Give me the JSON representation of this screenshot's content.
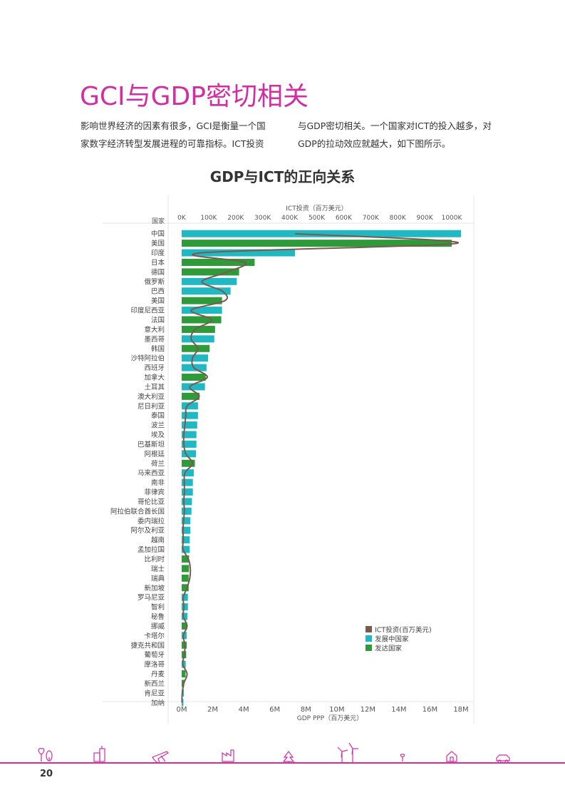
{
  "page": {
    "title": "GCI与GDP密切相关",
    "intro_left": [
      "影响世界经济的因素有很多，GCI是衡量一个国",
      "家数字经济转型发展进程的可靠指标。ICT投资"
    ],
    "intro_right": [
      "与GDP密切相关。一个国家对ICT的投入越多，对",
      "GDP的拉动效应就越大，如下图所示。"
    ],
    "page_number": "20"
  },
  "colors": {
    "accent": "#d12ea4",
    "developing": "#1fb8c3",
    "developed": "#2e9a3a",
    "ict_line": "#7b5a4e"
  },
  "footer_icons": [
    "plant-icon",
    "buildings-icon",
    "airplane-icon",
    "factory-icon",
    "tree-icon",
    "wind-turbine-icon",
    "sprout-icon",
    "house-icon",
    "car-icon"
  ],
  "chart_data": {
    "type": "bar",
    "title": "GDP与ICT的正向关系",
    "category_header": "国家",
    "top_axis_label": "ICT投资（百万美元）",
    "top_ticks": [
      "0K",
      "100K",
      "200K",
      "300K",
      "400K",
      "500K",
      "600K",
      "700K",
      "800K",
      "900K",
      "1000K"
    ],
    "top_range": [
      0,
      1000000
    ],
    "bottom_axis_label": "GDP PPP（百万美元）",
    "bottom_ticks": [
      "0M",
      "2M",
      "4M",
      "6M",
      "8M",
      "10M",
      "12M",
      "14M",
      "16M",
      "18M"
    ],
    "bottom_range": [
      0,
      18000000
    ],
    "legend": [
      {
        "key": "ict",
        "label": "ICT投资(百万美元)"
      },
      {
        "key": "developing",
        "label": "发展中国家"
      },
      {
        "key": "developed",
        "label": "发达国家"
      }
    ],
    "legend_position": "bottom-right",
    "countries": [
      {
        "name": "中国",
        "type": "developing",
        "gdp": 18000000,
        "ict": 420000
      },
      {
        "name": "美国",
        "type": "developed",
        "gdp": 17400000,
        "ict": 1020000
      },
      {
        "name": "印度",
        "type": "developing",
        "gdp": 7300000,
        "ict": 75000
      },
      {
        "name": "日本",
        "type": "developed",
        "gdp": 4700000,
        "ict": 235000
      },
      {
        "name": "德国",
        "type": "developed",
        "gdp": 3700000,
        "ict": 170000
      },
      {
        "name": "俄罗斯",
        "type": "developing",
        "gdp": 3550000,
        "ict": 75000
      },
      {
        "name": "巴西",
        "type": "developing",
        "gdp": 3150000,
        "ict": 150000
      },
      {
        "name": "美国",
        "type": "developed",
        "gdp": 2600000,
        "ict": 160000
      },
      {
        "name": "印度尼西亚",
        "type": "developing",
        "gdp": 2600000,
        "ict": 35000
      },
      {
        "name": "法国",
        "type": "developed",
        "gdp": 2550000,
        "ict": 110000
      },
      {
        "name": "意大利",
        "type": "developed",
        "gdp": 2150000,
        "ict": 50000
      },
      {
        "name": "墨西哥",
        "type": "developing",
        "gdp": 2100000,
        "ict": 35000
      },
      {
        "name": "韩国",
        "type": "developed",
        "gdp": 1800000,
        "ict": 60000
      },
      {
        "name": "沙特阿拉伯",
        "type": "developing",
        "gdp": 1700000,
        "ict": 40000
      },
      {
        "name": "西班牙",
        "type": "developing",
        "gdp": 1600000,
        "ict": 45000
      },
      {
        "name": "加拿大",
        "type": "developed",
        "gdp": 1550000,
        "ict": 95000
      },
      {
        "name": "土耳其",
        "type": "developing",
        "gdp": 1500000,
        "ict": 30000
      },
      {
        "name": "澳大利亚",
        "type": "developed",
        "gdp": 1150000,
        "ict": 65000
      },
      {
        "name": "尼日利亚",
        "type": "developing",
        "gdp": 1050000,
        "ict": 20000
      },
      {
        "name": "泰国",
        "type": "developing",
        "gdp": 1050000,
        "ict": 15000
      },
      {
        "name": "波兰",
        "type": "developing",
        "gdp": 1000000,
        "ict": 12000
      },
      {
        "name": "埃及",
        "type": "developing",
        "gdp": 950000,
        "ict": 8000
      },
      {
        "name": "巴基斯坦",
        "type": "developing",
        "gdp": 950000,
        "ict": 8000
      },
      {
        "name": "阿根廷",
        "type": "developing",
        "gdp": 920000,
        "ict": 15000
      },
      {
        "name": "荷兰",
        "type": "developed",
        "gdp": 850000,
        "ict": 40000
      },
      {
        "name": "马来西亚",
        "type": "developing",
        "gdp": 780000,
        "ict": 12000
      },
      {
        "name": "南非",
        "type": "developing",
        "gdp": 720000,
        "ict": 10000
      },
      {
        "name": "菲律宾",
        "type": "developing",
        "gdp": 720000,
        "ict": 10000
      },
      {
        "name": "哥伦比亚",
        "type": "developing",
        "gdp": 660000,
        "ict": 8000
      },
      {
        "name": "阿拉伯联合酋长国",
        "type": "developing",
        "gdp": 630000,
        "ict": 10000
      },
      {
        "name": "委内瑞拉",
        "type": "developing",
        "gdp": 560000,
        "ict": 7000
      },
      {
        "name": "阿尔及利亚",
        "type": "developing",
        "gdp": 560000,
        "ict": 5000
      },
      {
        "name": "越南",
        "type": "developing",
        "gdp": 520000,
        "ict": 6000
      },
      {
        "name": "孟加拉国",
        "type": "developing",
        "gdp": 520000,
        "ict": 5000
      },
      {
        "name": "比利时",
        "type": "developed",
        "gdp": 480000,
        "ict": 25000
      },
      {
        "name": "瑞士",
        "type": "developed",
        "gdp": 470000,
        "ict": 32000
      },
      {
        "name": "瑞典",
        "type": "developed",
        "gdp": 450000,
        "ict": 30000
      },
      {
        "name": "新加坡",
        "type": "developed",
        "gdp": 450000,
        "ict": 20000
      },
      {
        "name": "罗马尼亚",
        "type": "developing",
        "gdp": 400000,
        "ict": 6000
      },
      {
        "name": "智利",
        "type": "developing",
        "gdp": 400000,
        "ict": 8000
      },
      {
        "name": "秘鲁",
        "type": "developing",
        "gdp": 370000,
        "ict": 6000
      },
      {
        "name": "挪威",
        "type": "developed",
        "gdp": 350000,
        "ict": 20000
      },
      {
        "name": "卡塔尔",
        "type": "developing",
        "gdp": 320000,
        "ict": 6000
      },
      {
        "name": "捷克共和国",
        "type": "developed",
        "gdp": 320000,
        "ict": 12000
      },
      {
        "name": "葡萄牙",
        "type": "developed",
        "gdp": 290000,
        "ict": 10000
      },
      {
        "name": "摩洛哥",
        "type": "developing",
        "gdp": 260000,
        "ict": 4000
      },
      {
        "name": "丹麦",
        "type": "developed",
        "gdp": 250000,
        "ict": 20000
      },
      {
        "name": "新西兰",
        "type": "developed",
        "gdp": 160000,
        "ict": 8000
      },
      {
        "name": "肯尼亚",
        "type": "developing",
        "gdp": 140000,
        "ict": 2000
      },
      {
        "name": "加纳",
        "type": "developing",
        "gdp": 110000,
        "ict": 1000
      }
    ]
  }
}
